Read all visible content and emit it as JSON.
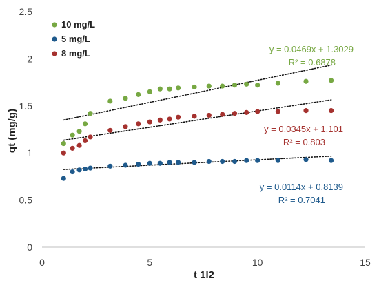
{
  "chart_data": {
    "type": "scatter",
    "xlabel": "t 1l2",
    "ylabel": "qt (mg/g)",
    "xlim": [
      0,
      15
    ],
    "ylim": [
      0,
      2.5
    ],
    "x_ticks": [
      "0",
      "5",
      "10",
      "15"
    ],
    "y_ticks": [
      "0",
      "0.5",
      "1",
      "1.5",
      "2",
      "2.5"
    ],
    "legend_position": "top-left",
    "grid": false,
    "series": [
      {
        "name": "10 mg/L",
        "color": "#77a843",
        "x": [
          1,
          1.41,
          1.73,
          2,
          2.24,
          3.16,
          3.87,
          4.47,
          5,
          5.48,
          5.92,
          6.32,
          7.07,
          7.75,
          8.37,
          8.94,
          9.49,
          10,
          10.95,
          12.25,
          13.42
        ],
        "y": [
          1.1,
          1.19,
          1.23,
          1.31,
          1.42,
          1.55,
          1.58,
          1.62,
          1.65,
          1.68,
          1.68,
          1.69,
          1.7,
          1.71,
          1.71,
          1.72,
          1.73,
          1.72,
          1.74,
          1.76,
          1.77
        ],
        "trendline": {
          "slope": 0.0469,
          "intercept": 1.3029
        },
        "equation": "y = 0.0469x + 1.3029",
        "r2": "R² = 0.6878"
      },
      {
        "name": "5 mg/L",
        "color": "#1f5a8c",
        "x": [
          1,
          1.41,
          1.73,
          2,
          2.24,
          3.16,
          3.87,
          4.47,
          5,
          5.48,
          5.92,
          6.32,
          7.07,
          7.75,
          8.37,
          8.94,
          9.49,
          10,
          10.95,
          12.25,
          13.42
        ],
        "y": [
          0.73,
          0.8,
          0.82,
          0.83,
          0.84,
          0.86,
          0.87,
          0.88,
          0.89,
          0.89,
          0.9,
          0.9,
          0.9,
          0.91,
          0.91,
          0.91,
          0.92,
          0.92,
          0.92,
          0.93,
          0.92
        ],
        "trendline": {
          "slope": 0.0114,
          "intercept": 0.8139
        },
        "equation": "y = 0.0114x + 0.8139",
        "r2": "R² = 0.7041"
      },
      {
        "name": "8 mg/L",
        "color": "#a5322f",
        "x": [
          1,
          1.41,
          1.73,
          2,
          2.24,
          3.16,
          3.87,
          4.47,
          5,
          5.48,
          5.92,
          6.32,
          7.07,
          7.75,
          8.37,
          8.94,
          9.49,
          10,
          10.95,
          12.25,
          13.42
        ],
        "y": [
          1.0,
          1.05,
          1.08,
          1.13,
          1.17,
          1.24,
          1.28,
          1.31,
          1.33,
          1.35,
          1.36,
          1.38,
          1.39,
          1.4,
          1.41,
          1.42,
          1.43,
          1.44,
          1.44,
          1.45,
          1.45
        ],
        "trendline": {
          "slope": 0.0345,
          "intercept": 1.101
        },
        "equation": "y = 0.0345x + 1.101",
        "r2": "R² = 0.803"
      }
    ]
  }
}
